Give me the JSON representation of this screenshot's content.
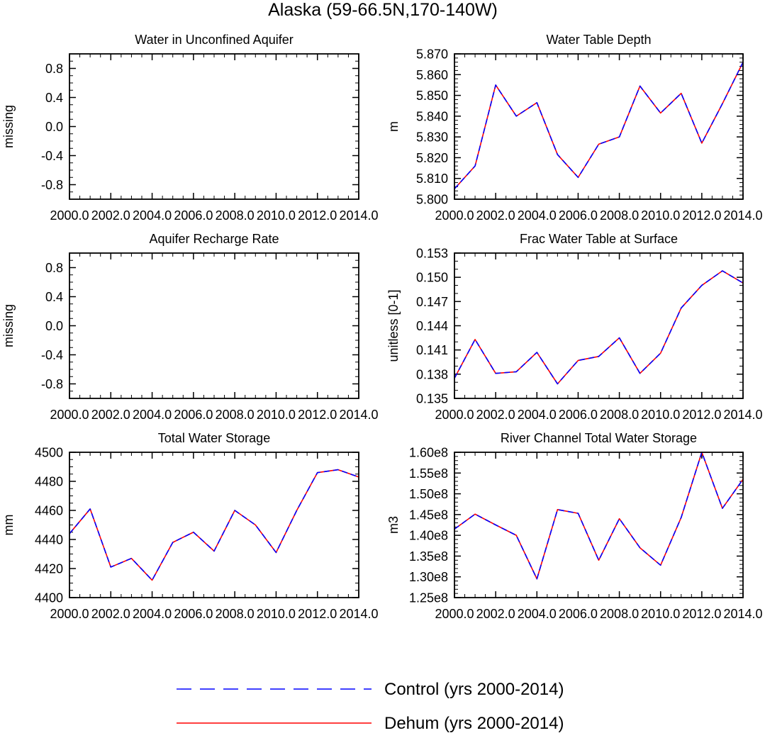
{
  "figure": {
    "title": "Alaska (59-66.5N,170-140W)"
  },
  "legend": {
    "placement": "bottom-center",
    "items": [
      {
        "label": "Control (yrs 2000-2014)",
        "color": "#0000ff",
        "style": "dashed"
      },
      {
        "label": "Dehum (yrs 2000-2014)",
        "color": "#ff0000",
        "style": "solid"
      }
    ]
  },
  "chart_data": [
    {
      "id": "p1",
      "type": "line",
      "title": "Water in Unconfined Aquifer",
      "ylabel": "missing",
      "xlabel": "",
      "xlim": [
        2000,
        2014
      ],
      "ylim": [
        -1,
        1
      ],
      "xticks": [
        "2000.0",
        "2002.0",
        "2004.0",
        "2006.0",
        "2008.0",
        "2010.0",
        "2012.0",
        "2014.0"
      ],
      "yticks": [
        -0.8,
        -0.4,
        0.0,
        0.4,
        0.8
      ],
      "ytick_labels": [
        "-0.8",
        "-0.4",
        "0.0",
        "0.4",
        "0.8"
      ],
      "yminor": [
        -1.0,
        -0.9,
        -0.7,
        -0.6,
        -0.5,
        -0.3,
        -0.2,
        -0.1,
        0.1,
        0.2,
        0.3,
        0.5,
        0.6,
        0.7,
        0.9,
        1.0
      ],
      "x": [],
      "series": []
    },
    {
      "id": "p2",
      "type": "line",
      "title": "Water Table Depth",
      "ylabel": "m",
      "xlabel": "",
      "xlim": [
        2000,
        2014
      ],
      "ylim": [
        5.8,
        5.87
      ],
      "xticks": [
        "2000.0",
        "2002.0",
        "2004.0",
        "2006.0",
        "2008.0",
        "2010.0",
        "2012.0",
        "2014.0"
      ],
      "yticks": [
        5.8,
        5.81,
        5.82,
        5.83,
        5.84,
        5.85,
        5.86,
        5.87
      ],
      "ytick_labels": [
        "5.800",
        "5.810",
        "5.820",
        "5.830",
        "5.840",
        "5.850",
        "5.860",
        "5.870"
      ],
      "yminor": [
        5.802,
        5.804,
        5.806,
        5.808,
        5.812,
        5.814,
        5.816,
        5.818,
        5.822,
        5.824,
        5.826,
        5.828,
        5.832,
        5.834,
        5.836,
        5.838,
        5.842,
        5.844,
        5.846,
        5.848,
        5.852,
        5.854,
        5.856,
        5.858,
        5.862,
        5.864,
        5.866,
        5.868
      ],
      "x": [
        2000,
        2001,
        2002,
        2003,
        2004,
        2005,
        2006,
        2007,
        2008,
        2009,
        2010,
        2011,
        2012,
        2013,
        2014
      ],
      "series": [
        {
          "name": "Control (yrs 2000-2014)",
          "values": [
            5.805,
            5.816,
            5.855,
            5.84,
            5.8465,
            5.8215,
            5.8105,
            5.8265,
            5.83,
            5.8545,
            5.8415,
            5.851,
            5.827,
            5.846,
            5.866
          ]
        },
        {
          "name": "Dehum (yrs 2000-2014)",
          "values": [
            5.805,
            5.816,
            5.855,
            5.84,
            5.8465,
            5.8215,
            5.8105,
            5.8265,
            5.83,
            5.8545,
            5.8415,
            5.851,
            5.827,
            5.846,
            5.866
          ]
        }
      ]
    },
    {
      "id": "p3",
      "type": "line",
      "title": "Aquifer Recharge Rate",
      "ylabel": "missing",
      "xlabel": "",
      "xlim": [
        2000,
        2014
      ],
      "ylim": [
        -1,
        1
      ],
      "xticks": [
        "2000.0",
        "2002.0",
        "2004.0",
        "2006.0",
        "2008.0",
        "2010.0",
        "2012.0",
        "2014.0"
      ],
      "yticks": [
        -0.8,
        -0.4,
        0.0,
        0.4,
        0.8
      ],
      "ytick_labels": [
        "-0.8",
        "-0.4",
        "0.0",
        "0.4",
        "0.8"
      ],
      "yminor": [
        -1.0,
        -0.9,
        -0.7,
        -0.6,
        -0.5,
        -0.3,
        -0.2,
        -0.1,
        0.1,
        0.2,
        0.3,
        0.5,
        0.6,
        0.7,
        0.9,
        1.0
      ],
      "x": [],
      "series": []
    },
    {
      "id": "p4",
      "type": "line",
      "title": "Frac Water Table at Surface",
      "ylabel": "unitless [0-1]",
      "xlabel": "",
      "xlim": [
        2000,
        2014
      ],
      "ylim": [
        0.135,
        0.153
      ],
      "xticks": [
        "2000.0",
        "2002.0",
        "2004.0",
        "2006.0",
        "2008.0",
        "2010.0",
        "2012.0",
        "2014.0"
      ],
      "yticks": [
        0.135,
        0.138,
        0.141,
        0.144,
        0.147,
        0.15,
        0.153
      ],
      "ytick_labels": [
        "0.135",
        "0.138",
        "0.141",
        "0.144",
        "0.147",
        "0.150",
        "0.153"
      ],
      "yminor": [
        0.136,
        0.137,
        0.139,
        0.14,
        0.142,
        0.143,
        0.145,
        0.146,
        0.148,
        0.149,
        0.151,
        0.152
      ],
      "x": [
        2000,
        2001,
        2002,
        2003,
        2004,
        2005,
        2006,
        2007,
        2008,
        2009,
        2010,
        2011,
        2012,
        2013,
        2014
      ],
      "series": [
        {
          "name": "Control (yrs 2000-2014)",
          "values": [
            0.1375,
            0.1423,
            0.1381,
            0.1383,
            0.1407,
            0.1368,
            0.1397,
            0.1402,
            0.1425,
            0.1381,
            0.1406,
            0.1462,
            0.149,
            0.1508,
            0.1493
          ]
        },
        {
          "name": "Dehum (yrs 2000-2014)",
          "values": [
            0.1375,
            0.1423,
            0.1381,
            0.1383,
            0.1407,
            0.1368,
            0.1397,
            0.1402,
            0.1425,
            0.1381,
            0.1406,
            0.1462,
            0.149,
            0.1508,
            0.1493
          ]
        }
      ]
    },
    {
      "id": "p5",
      "type": "line",
      "title": "Total Water Storage",
      "ylabel": "mm",
      "xlabel": "",
      "xlim": [
        2000,
        2014
      ],
      "ylim": [
        4400,
        4500
      ],
      "xticks": [
        "2000.0",
        "2002.0",
        "2004.0",
        "2006.0",
        "2008.0",
        "2010.0",
        "2012.0",
        "2014.0"
      ],
      "yticks": [
        4400,
        4420,
        4440,
        4460,
        4480,
        4500
      ],
      "ytick_labels": [
        "4400",
        "4420",
        "4440",
        "4460",
        "4480",
        "4500"
      ],
      "yminor": [
        4405,
        4410,
        4415,
        4425,
        4430,
        4435,
        4445,
        4450,
        4455,
        4465,
        4470,
        4475,
        4485,
        4490,
        4495
      ],
      "x": [
        2000,
        2001,
        2002,
        2003,
        2004,
        2005,
        2006,
        2007,
        2008,
        2009,
        2010,
        2011,
        2012,
        2013,
        2014
      ],
      "series": [
        {
          "name": "Control (yrs 2000-2014)",
          "values": [
            4444,
            4461,
            4421,
            4427,
            4412,
            4438,
            4445,
            4432,
            4460,
            4450,
            4431,
            4460,
            4486,
            4488,
            4483
          ]
        },
        {
          "name": "Dehum (yrs 2000-2014)",
          "values": [
            4444,
            4461,
            4421,
            4427,
            4412,
            4438,
            4445,
            4432,
            4460,
            4450,
            4431,
            4460,
            4486,
            4488,
            4483
          ]
        }
      ]
    },
    {
      "id": "p6",
      "type": "line",
      "title": "River Channel Total Water Storage",
      "ylabel": "m3",
      "xlabel": "",
      "xlim": [
        2000,
        2014
      ],
      "ylim": [
        125000000.0,
        160000000.0
      ],
      "xticks": [
        "2000.0",
        "2002.0",
        "2004.0",
        "2006.0",
        "2008.0",
        "2010.0",
        "2012.0",
        "2014.0"
      ],
      "yticks": [
        125000000.0,
        130000000.0,
        135000000.0,
        140000000.0,
        145000000.0,
        150000000.0,
        155000000.0,
        160000000.0
      ],
      "ytick_labels": [
        "1.25e8",
        "1.30e8",
        "1.35e8",
        "1.40e8",
        "1.45e8",
        "1.50e8",
        "1.55e8",
        "1.60e8"
      ],
      "yminor": [
        126000000.0,
        127000000.0,
        128000000.0,
        129000000.0,
        131000000.0,
        132000000.0,
        133000000.0,
        134000000.0,
        136000000.0,
        137000000.0,
        138000000.0,
        139000000.0,
        141000000.0,
        142000000.0,
        143000000.0,
        144000000.0,
        146000000.0,
        147000000.0,
        148000000.0,
        149000000.0,
        151000000.0,
        152000000.0,
        153000000.0,
        154000000.0,
        156000000.0,
        157000000.0,
        158000000.0,
        159000000.0
      ],
      "x": [
        2000,
        2001,
        2002,
        2003,
        2004,
        2005,
        2006,
        2007,
        2008,
        2009,
        2010,
        2011,
        2012,
        2013,
        2014
      ],
      "series": [
        {
          "name": "Control (yrs 2000-2014)",
          "values": [
            141500000.0,
            145100000.0,
            142500000.0,
            140000000.0,
            129500000.0,
            146200000.0,
            145300000.0,
            134000000.0,
            144000000.0,
            137000000.0,
            132800000.0,
            144300000.0,
            160000000.0,
            146500000.0,
            153500000.0
          ]
        },
        {
          "name": "Dehum (yrs 2000-2014)",
          "values": [
            141500000.0,
            145100000.0,
            142500000.0,
            140000000.0,
            129500000.0,
            146200000.0,
            145300000.0,
            134000000.0,
            144000000.0,
            137000000.0,
            132800000.0,
            144300000.0,
            160000000.0,
            146500000.0,
            153500000.0
          ]
        }
      ]
    }
  ]
}
